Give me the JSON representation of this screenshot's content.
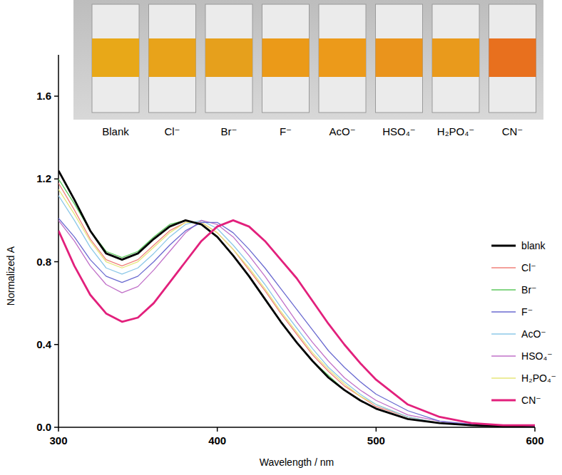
{
  "chart_data": {
    "type": "line",
    "x_label": "Wavelength / nm",
    "y_label": "Normalized A",
    "x": [
      300,
      310,
      320,
      330,
      340,
      350,
      360,
      370,
      380,
      390,
      400,
      410,
      420,
      430,
      440,
      450,
      460,
      470,
      480,
      490,
      500,
      520,
      540,
      560,
      580,
      600
    ],
    "xlim": [
      300,
      600
    ],
    "xticks": [
      300,
      400,
      500,
      600
    ],
    "ylim": [
      0,
      1.8
    ],
    "yticks": [
      {
        "value": 0,
        "label": "0.0"
      },
      {
        "value": 0.4,
        "label": "0.4"
      },
      {
        "value": 0.8,
        "label": "0.8"
      },
      {
        "value": 1.2,
        "label": "1.2"
      },
      {
        "value": 1.6,
        "label": "1.6"
      }
    ],
    "grid": false,
    "legend": "right",
    "series": [
      {
        "name": "Br⁻",
        "color": "#5cc85c",
        "values": [
          1.2,
          1.08,
          0.95,
          0.85,
          0.82,
          0.85,
          0.92,
          0.98,
          1.0,
          0.98,
          0.92,
          0.83,
          0.73,
          0.62,
          0.51,
          0.41,
          0.32,
          0.25,
          0.18,
          0.13,
          0.09,
          0.04,
          0.02,
          0.01,
          0.005,
          0.0
        ]
      },
      {
        "name": "Cl⁻",
        "color": "#f0807a",
        "values": [
          1.18,
          1.05,
          0.91,
          0.81,
          0.78,
          0.81,
          0.88,
          0.95,
          0.99,
          0.99,
          0.94,
          0.86,
          0.76,
          0.66,
          0.55,
          0.45,
          0.35,
          0.27,
          0.2,
          0.15,
          0.1,
          0.05,
          0.02,
          0.01,
          0.005,
          0.0
        ]
      },
      {
        "name": "H₂PO₄⁻",
        "color": "#e6e67a",
        "values": [
          1.15,
          1.03,
          0.9,
          0.8,
          0.77,
          0.8,
          0.87,
          0.94,
          0.99,
          0.99,
          0.94,
          0.86,
          0.77,
          0.67,
          0.56,
          0.46,
          0.36,
          0.28,
          0.21,
          0.15,
          0.11,
          0.05,
          0.02,
          0.01,
          0.005,
          0.0
        ]
      },
      {
        "name": "AcO⁻",
        "color": "#8cc8e8",
        "values": [
          1.12,
          1.0,
          0.87,
          0.77,
          0.74,
          0.77,
          0.84,
          0.92,
          0.98,
          1.0,
          0.96,
          0.88,
          0.79,
          0.69,
          0.58,
          0.48,
          0.38,
          0.29,
          0.22,
          0.16,
          0.11,
          0.05,
          0.02,
          0.01,
          0.005,
          0.0
        ]
      },
      {
        "name": "HSO₄⁻",
        "color": "#c070c8",
        "values": [
          1.0,
          0.9,
          0.78,
          0.69,
          0.65,
          0.68,
          0.76,
          0.85,
          0.94,
          1.0,
          0.98,
          0.92,
          0.83,
          0.73,
          0.62,
          0.51,
          0.41,
          0.32,
          0.24,
          0.18,
          0.13,
          0.06,
          0.03,
          0.01,
          0.005,
          0.0
        ]
      },
      {
        "name": "F⁻",
        "color": "#6a6ad0",
        "values": [
          1.01,
          0.92,
          0.81,
          0.73,
          0.7,
          0.73,
          0.8,
          0.88,
          0.95,
          0.99,
          0.99,
          0.94,
          0.86,
          0.77,
          0.67,
          0.57,
          0.47,
          0.37,
          0.29,
          0.22,
          0.16,
          0.08,
          0.03,
          0.015,
          0.01,
          0.005
        ]
      },
      {
        "name": "blank",
        "color": "#000000",
        "values": [
          1.24,
          1.1,
          0.95,
          0.84,
          0.81,
          0.84,
          0.91,
          0.97,
          1.0,
          0.98,
          0.92,
          0.83,
          0.73,
          0.62,
          0.51,
          0.41,
          0.32,
          0.24,
          0.18,
          0.13,
          0.09,
          0.04,
          0.02,
          0.01,
          0.005,
          0.0
        ]
      },
      {
        "name": "CN⁻",
        "color": "#e2207c",
        "values": [
          0.95,
          0.78,
          0.64,
          0.55,
          0.51,
          0.53,
          0.6,
          0.7,
          0.8,
          0.9,
          0.97,
          1.0,
          0.97,
          0.9,
          0.81,
          0.72,
          0.61,
          0.5,
          0.4,
          0.31,
          0.23,
          0.11,
          0.05,
          0.02,
          0.01,
          0.01
        ]
      }
    ],
    "legend_order": [
      "blank",
      "Cl⁻",
      "Br⁻",
      "F⁻",
      "AcO⁻",
      "HSO₄⁻",
      "H₂PO₄⁻",
      "CN⁻"
    ]
  },
  "photo": {
    "labels": [
      "Blank",
      "Cl⁻",
      "Br⁻",
      "F⁻",
      "AcO⁻",
      "HSO₄⁻",
      "H₂PO₄⁻",
      "CN⁻"
    ],
    "colors": [
      "#e8a818",
      "#e8a31a",
      "#e6a01c",
      "#eb9a18",
      "#ec9a1a",
      "#ea941c",
      "#e99a1c",
      "#e8701e"
    ]
  }
}
